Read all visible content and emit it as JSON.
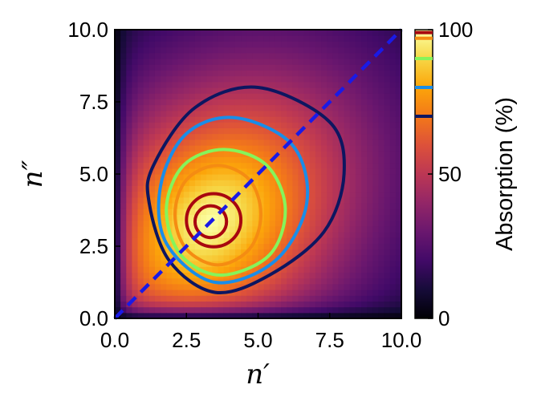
{
  "chart_data": {
    "type": "heatmap",
    "title": "",
    "xlabel": "n′",
    "ylabel": "n″",
    "xlim": [
      0.0,
      10.0
    ],
    "ylim": [
      0.0,
      10.0
    ],
    "x_ticks": [
      "0.0",
      "2.5",
      "5.0",
      "7.5",
      "10.0"
    ],
    "y_ticks": [
      "0.0",
      "2.5",
      "5.0",
      "7.5",
      "10.0"
    ],
    "grid": false,
    "colormap": "inferno",
    "colorbar": {
      "label": "Absorption (%)",
      "range": [
        0,
        100
      ],
      "ticks": [
        "0",
        "50",
        "100"
      ],
      "contour_levels": [
        70,
        80,
        90,
        97,
        99
      ],
      "contour_colors": [
        "#0d1660",
        "#1a8de8",
        "#86f45a",
        "#f58c12",
        "#a8070f"
      ]
    },
    "peak": {
      "x": 3.35,
      "y": 3.35,
      "value": 100
    },
    "contours": [
      {
        "level": 70,
        "color": "#0d1660",
        "points": [
          [
            3.5,
            0.9
          ],
          [
            5.4,
            1.5
          ],
          [
            7.3,
            3.0
          ],
          [
            8.0,
            5.0
          ],
          [
            7.5,
            6.8
          ],
          [
            5.0,
            8.0
          ],
          [
            2.8,
            7.3
          ],
          [
            1.35,
            5.3
          ],
          [
            1.2,
            4.0
          ],
          [
            1.9,
            2.0
          ],
          [
            3.5,
            0.9
          ]
        ]
      },
      {
        "level": 80,
        "color": "#1a8de8",
        "points": [
          [
            3.5,
            1.25
          ],
          [
            5.6,
            2.0
          ],
          [
            6.7,
            4.0
          ],
          [
            6.2,
            6.0
          ],
          [
            4.2,
            6.95
          ],
          [
            2.5,
            6.4
          ],
          [
            1.6,
            4.6
          ],
          [
            1.8,
            2.6
          ],
          [
            3.5,
            1.25
          ]
        ]
      },
      {
        "level": 90,
        "color": "#86f45a",
        "points": [
          [
            3.7,
            1.5
          ],
          [
            5.4,
            2.2
          ],
          [
            5.95,
            3.8
          ],
          [
            5.3,
            5.3
          ],
          [
            3.8,
            5.85
          ],
          [
            2.4,
            5.3
          ],
          [
            1.8,
            3.8
          ],
          [
            2.3,
            2.2
          ],
          [
            3.7,
            1.5
          ]
        ]
      },
      {
        "level": 97,
        "color": "#f58c12",
        "points": [
          [
            3.6,
            1.85
          ],
          [
            4.7,
            2.4
          ],
          [
            5.1,
            3.6
          ],
          [
            4.7,
            4.8
          ],
          [
            3.6,
            5.3
          ],
          [
            2.5,
            4.8
          ],
          [
            2.1,
            3.6
          ],
          [
            2.5,
            2.4
          ],
          [
            3.6,
            1.85
          ]
        ]
      },
      {
        "level": 99,
        "color": "#a8070f",
        "ellipse": {
          "cx": 3.45,
          "cy": 3.4,
          "rx": 0.95,
          "ry": 0.92
        }
      },
      {
        "level": 99.5,
        "color": "#a8070f",
        "ellipse": {
          "cx": 3.35,
          "cy": 3.35,
          "rx": 0.55,
          "ry": 0.55
        }
      }
    ],
    "diagonal": {
      "label": "",
      "color": "#1a1ae6",
      "points": [
        [
          0,
          0
        ],
        [
          10,
          10
        ]
      ],
      "style": "dashed"
    }
  }
}
